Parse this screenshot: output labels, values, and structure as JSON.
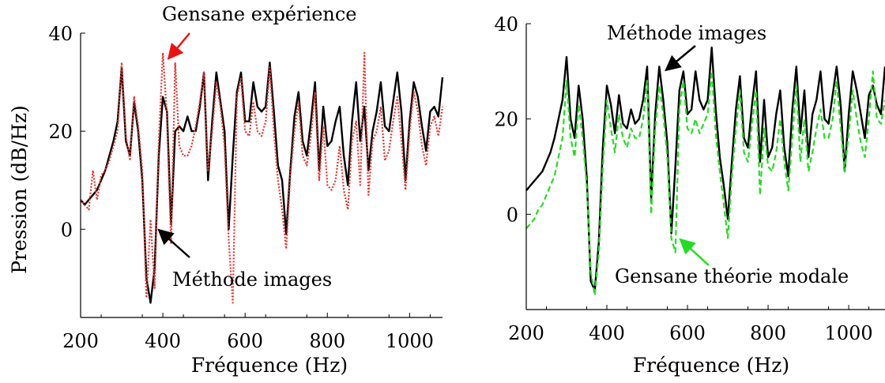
{
  "colors": {
    "black_series": "#000000",
    "red_series": "#e8322d",
    "green_series": "#22dd22",
    "arrow_red": "#ee1111",
    "arrow_green": "#22dd22",
    "arrow_black": "#000000"
  },
  "chart_data": [
    {
      "type": "line",
      "title": "",
      "xlabel": "Fréquence (Hz)",
      "ylabel": "Pression (dB/Hz)",
      "xlim": [
        200,
        1080
      ],
      "ylim": [
        -18,
        40
      ],
      "xticks": [
        200,
        400,
        600,
        800,
        1000
      ],
      "yticks": [
        0,
        20,
        40
      ],
      "tick_labels_x": [
        "200",
        "400",
        "600",
        "800",
        "1000"
      ],
      "tick_labels_y": [
        "0",
        "20",
        "40"
      ],
      "grid": false,
      "annotations": [
        {
          "text": "Gensane expérience",
          "arrow_color": "#ee1111"
        },
        {
          "text": "Méthode images",
          "arrow_color": "#000000"
        }
      ],
      "series": [
        {
          "color": "#000000",
          "style": "solid",
          "x": [
            200,
            210,
            220,
            230,
            240,
            250,
            260,
            270,
            280,
            290,
            300,
            310,
            320,
            330,
            340,
            350,
            360,
            370,
            380,
            390,
            400,
            410,
            420,
            430,
            440,
            450,
            460,
            470,
            480,
            490,
            500,
            510,
            520,
            530,
            540,
            550,
            560,
            570,
            580,
            590,
            600,
            610,
            620,
            630,
            640,
            650,
            660,
            670,
            680,
            690,
            700,
            710,
            720,
            730,
            740,
            750,
            760,
            770,
            780,
            790,
            800,
            810,
            820,
            830,
            840,
            850,
            860,
            870,
            880,
            890,
            900,
            910,
            920,
            930,
            940,
            950,
            960,
            970,
            980,
            990,
            1000,
            1010,
            1020,
            1030,
            1040,
            1050,
            1060,
            1070,
            1080
          ],
          "y": [
            6,
            5,
            6,
            7,
            8,
            10,
            12,
            15,
            18,
            22,
            33,
            18,
            15,
            26,
            20,
            10,
            -10,
            -15,
            -8,
            15,
            27,
            24,
            1,
            20,
            21,
            20,
            23,
            20,
            20,
            25,
            32,
            10,
            22,
            32,
            26,
            20,
            0,
            15,
            28,
            32,
            22,
            22,
            30,
            25,
            24,
            25,
            34,
            24,
            13,
            10,
            -1,
            12,
            23,
            28,
            18,
            15,
            22,
            30,
            12,
            25,
            17,
            18,
            22,
            25,
            15,
            9,
            22,
            30,
            18,
            25,
            12,
            20,
            24,
            30,
            21,
            20,
            26,
            32,
            24,
            10,
            22,
            30,
            27,
            21,
            16,
            24,
            25,
            23,
            31
          ]
        },
        {
          "color": "#e8322d",
          "style": "dotted",
          "x": [
            200,
            210,
            220,
            230,
            240,
            250,
            260,
            270,
            280,
            290,
            300,
            310,
            320,
            330,
            340,
            350,
            360,
            370,
            380,
            390,
            400,
            410,
            420,
            430,
            440,
            450,
            460,
            470,
            480,
            490,
            500,
            510,
            520,
            530,
            540,
            550,
            560,
            570,
            580,
            590,
            600,
            610,
            620,
            630,
            640,
            650,
            660,
            670,
            680,
            690,
            700,
            710,
            720,
            730,
            740,
            750,
            760,
            770,
            780,
            790,
            800,
            810,
            820,
            830,
            840,
            850,
            860,
            870,
            880,
            890,
            900,
            910,
            920,
            930,
            940,
            950,
            960,
            970,
            980,
            990,
            1000,
            1010,
            1020,
            1030,
            1040,
            1050,
            1060,
            1070,
            1080
          ],
          "y": [
            6,
            5,
            4,
            12,
            6,
            11,
            12,
            14,
            17,
            20,
            34,
            19,
            14,
            27,
            21,
            12,
            -14,
            2,
            -12,
            18,
            36,
            23,
            -3,
            34,
            17,
            15,
            15,
            17,
            21,
            26,
            32,
            12,
            20,
            30,
            25,
            17,
            -2,
            -15,
            27,
            31,
            20,
            19,
            26,
            20,
            19,
            22,
            33,
            20,
            10,
            4,
            -4,
            11,
            20,
            26,
            15,
            13,
            19,
            28,
            10,
            21,
            9,
            8,
            10,
            17,
            8,
            4,
            18,
            22,
            9,
            36,
            7,
            18,
            20,
            25,
            14,
            16,
            22,
            27,
            18,
            8,
            20,
            28,
            24,
            17,
            13,
            21,
            23,
            19,
            25
          ]
        }
      ]
    },
    {
      "type": "line",
      "title": "",
      "xlabel": "Fréquence (Hz)",
      "ylabel": "",
      "xlim": [
        200,
        1090
      ],
      "ylim": [
        -20,
        40
      ],
      "xticks": [
        200,
        400,
        600,
        800,
        1000
      ],
      "yticks": [
        0,
        20,
        40
      ],
      "tick_labels_x": [
        "200",
        "400",
        "600",
        "800",
        "1000"
      ],
      "tick_labels_y": [
        "0",
        "20",
        "40"
      ],
      "grid": false,
      "annotations": [
        {
          "text": "Méthode images",
          "arrow_color": "#000000"
        },
        {
          "text": "Gensane théorie modale",
          "arrow_color": "#22dd22"
        }
      ],
      "series": [
        {
          "color": "#000000",
          "style": "solid",
          "x": [
            200,
            210,
            220,
            230,
            240,
            250,
            260,
            270,
            280,
            290,
            300,
            310,
            320,
            330,
            340,
            350,
            360,
            370,
            380,
            390,
            400,
            410,
            420,
            430,
            440,
            450,
            460,
            470,
            480,
            490,
            500,
            510,
            520,
            530,
            540,
            550,
            560,
            570,
            580,
            590,
            600,
            610,
            620,
            630,
            640,
            650,
            660,
            670,
            680,
            690,
            700,
            710,
            720,
            730,
            740,
            750,
            760,
            770,
            780,
            790,
            800,
            810,
            820,
            830,
            840,
            850,
            860,
            870,
            880,
            890,
            900,
            910,
            920,
            930,
            940,
            950,
            960,
            970,
            980,
            990,
            1000,
            1010,
            1020,
            1030,
            1040,
            1050,
            1060,
            1070,
            1080,
            1090
          ],
          "y": [
            5,
            6,
            7,
            8,
            9,
            11,
            13,
            16,
            20,
            24,
            33,
            20,
            16,
            27,
            20,
            8,
            -14,
            -16,
            -6,
            14,
            27,
            23,
            17,
            25,
            19,
            18,
            22,
            19,
            20,
            24,
            31,
            3,
            21,
            31,
            24,
            15,
            -4,
            10,
            26,
            30,
            21,
            22,
            30,
            24,
            22,
            24,
            35,
            22,
            12,
            6,
            -1,
            11,
            22,
            29,
            16,
            14,
            23,
            30,
            11,
            24,
            12,
            14,
            21,
            26,
            14,
            8,
            22,
            31,
            17,
            26,
            12,
            21,
            24,
            30,
            20,
            19,
            25,
            31,
            23,
            9,
            21,
            30,
            26,
            21,
            16,
            25,
            27,
            23,
            21,
            31
          ]
        },
        {
          "color": "#22dd22",
          "style": "dashed",
          "x": [
            200,
            210,
            220,
            230,
            240,
            250,
            260,
            270,
            280,
            290,
            300,
            310,
            320,
            330,
            340,
            350,
            360,
            370,
            380,
            390,
            400,
            410,
            420,
            430,
            440,
            450,
            460,
            470,
            480,
            490,
            500,
            510,
            520,
            530,
            540,
            550,
            560,
            570,
            580,
            590,
            600,
            610,
            620,
            630,
            640,
            650,
            660,
            670,
            680,
            690,
            700,
            710,
            720,
            730,
            740,
            750,
            760,
            770,
            780,
            790,
            800,
            810,
            820,
            830,
            840,
            850,
            860,
            870,
            880,
            890,
            900,
            910,
            920,
            930,
            940,
            950,
            960,
            970,
            980,
            990,
            1000,
            1010,
            1020,
            1030,
            1040,
            1050,
            1060,
            1070,
            1080,
            1090
          ],
          "y": [
            -3,
            -2,
            -1,
            1,
            2,
            4,
            6,
            8,
            12,
            16,
            28,
            16,
            12,
            23,
            16,
            6,
            -12,
            -17,
            -8,
            10,
            24,
            18,
            13,
            21,
            16,
            14,
            18,
            16,
            16,
            20,
            28,
            0,
            18,
            27,
            21,
            12,
            -5,
            -8,
            22,
            28,
            18,
            17,
            20,
            17,
            19,
            21,
            30,
            17,
            9,
            2,
            -5,
            8,
            18,
            26,
            13,
            11,
            19,
            26,
            4,
            18,
            10,
            9,
            13,
            20,
            11,
            5,
            16,
            27,
            11,
            20,
            9,
            13,
            18,
            22,
            16,
            16,
            20,
            28,
            18,
            9,
            17,
            26,
            20,
            15,
            12,
            20,
            30,
            20,
            19,
            24
          ]
        }
      ]
    }
  ]
}
